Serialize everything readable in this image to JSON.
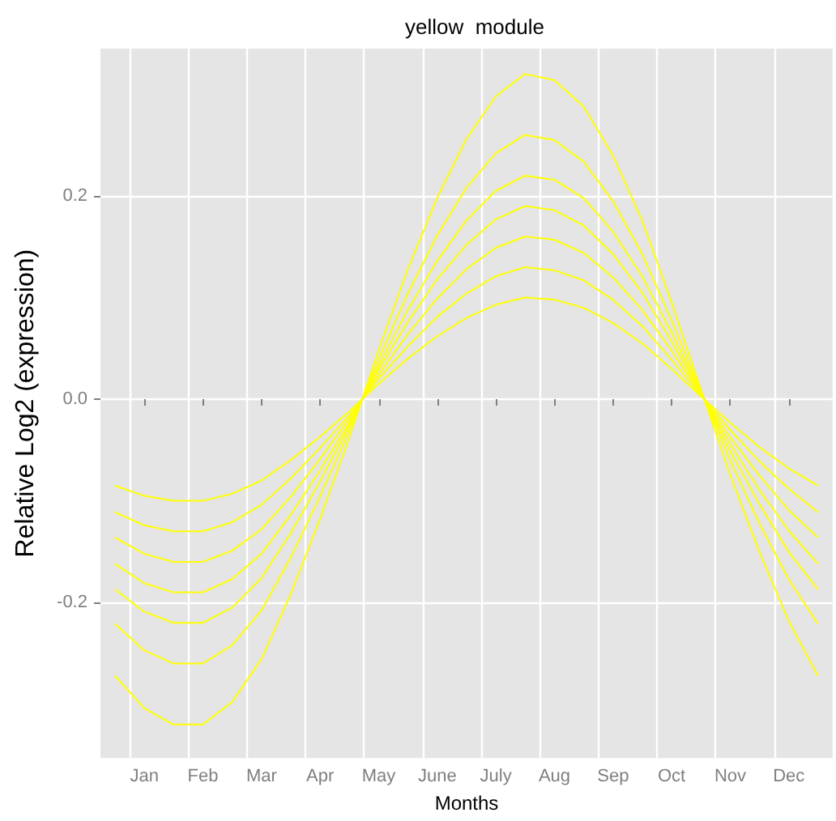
{
  "chart_data": {
    "type": "line",
    "title": "yellow  module",
    "xlabel": "Months",
    "ylabel": "Relative Log2 (expression)",
    "categories": [
      null,
      "Jan",
      null,
      "Feb",
      null,
      "Mar",
      null,
      "Apr",
      null,
      "May",
      null,
      "June",
      null,
      "July",
      null,
      "Aug",
      null,
      "Sep",
      null,
      "Oct",
      null,
      "Nov",
      null,
      "Dec",
      null
    ],
    "series": [
      {
        "color": "#ffff00",
        "values": [
          -0.272,
          -0.304,
          -0.32,
          -0.32,
          -0.298,
          -0.256,
          -0.192,
          -0.118,
          -0.038,
          0.048,
          0.128,
          0.198,
          0.256,
          0.298,
          0.32,
          0.314,
          0.288,
          0.24,
          0.176,
          0.096,
          0.01,
          -0.074,
          -0.15,
          -0.218,
          -0.272
        ]
      },
      {
        "color": "#ffff00",
        "values": [
          -0.221,
          -0.247,
          -0.26,
          -0.26,
          -0.242,
          -0.208,
          -0.156,
          -0.096,
          -0.031,
          0.039,
          0.104,
          0.161,
          0.208,
          0.242,
          0.26,
          0.255,
          0.234,
          0.195,
          0.143,
          0.078,
          0.008,
          -0.06,
          -0.122,
          -0.177,
          -0.221
        ]
      },
      {
        "color": "#ffff00",
        "values": [
          -0.187,
          -0.209,
          -0.22,
          -0.22,
          -0.205,
          -0.176,
          -0.132,
          -0.081,
          -0.026,
          0.033,
          0.088,
          0.136,
          0.176,
          0.205,
          0.22,
          0.216,
          0.198,
          0.165,
          0.121,
          0.066,
          0.007,
          -0.051,
          -0.103,
          -0.15,
          -0.187
        ]
      },
      {
        "color": "#ffff00",
        "values": [
          -0.162,
          -0.181,
          -0.19,
          -0.19,
          -0.177,
          -0.152,
          -0.114,
          -0.07,
          -0.023,
          0.029,
          0.076,
          0.118,
          0.152,
          0.177,
          0.19,
          0.186,
          0.171,
          0.143,
          0.105,
          0.057,
          0.006,
          -0.044,
          -0.089,
          -0.129,
          -0.162
        ]
      },
      {
        "color": "#ffff00",
        "values": [
          -0.136,
          -0.152,
          -0.16,
          -0.16,
          -0.149,
          -0.128,
          -0.096,
          -0.059,
          -0.019,
          0.024,
          0.064,
          0.099,
          0.128,
          0.149,
          0.16,
          0.157,
          0.144,
          0.12,
          0.088,
          0.048,
          0.005,
          -0.037,
          -0.075,
          -0.109,
          -0.136
        ]
      },
      {
        "color": "#ffff00",
        "values": [
          -0.111,
          -0.124,
          -0.13,
          -0.13,
          -0.121,
          -0.104,
          -0.078,
          -0.048,
          -0.016,
          0.02,
          0.052,
          0.081,
          0.104,
          0.121,
          0.13,
          0.127,
          0.117,
          0.098,
          0.072,
          0.039,
          0.004,
          -0.03,
          -0.061,
          -0.088,
          -0.111
        ]
      },
      {
        "color": "#ffff00",
        "values": [
          -0.085,
          -0.095,
          -0.1,
          -0.1,
          -0.093,
          -0.08,
          -0.06,
          -0.037,
          -0.012,
          0.015,
          0.04,
          0.062,
          0.08,
          0.093,
          0.1,
          0.098,
          0.09,
          0.075,
          0.055,
          0.03,
          0.003,
          -0.023,
          -0.047,
          -0.068,
          -0.085
        ]
      }
    ],
    "ylim": [
      -0.353,
      0.345
    ],
    "yticks": [
      {
        "value": -0.2,
        "label": "-0.2"
      },
      {
        "value": 0,
        "label": "0.0"
      },
      {
        "value": 0.2,
        "label": "0.2"
      }
    ],
    "grid": true
  }
}
